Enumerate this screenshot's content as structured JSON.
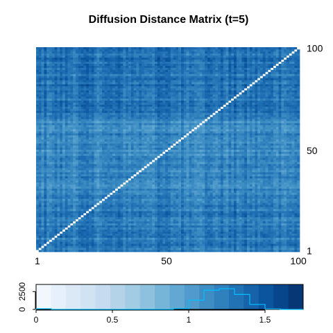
{
  "chart_data": [
    {
      "type": "heatmap",
      "title": "Diffusion Distance Matrix (t=5)",
      "n": 100,
      "x_ticks": [
        "1",
        "50",
        "100"
      ],
      "y_ticks": [
        "1",
        "50",
        "100"
      ],
      "x_tick_values": [
        1,
        50,
        100
      ],
      "y_tick_values": [
        1,
        50,
        100
      ],
      "diagonal_value": 0,
      "typical_offdiagonal_range": [
        0.95,
        1.55
      ],
      "colorscale": [
        "#F7FBFF",
        "#DEEBF7",
        "#C6DBEF",
        "#9ECAE1",
        "#6BAED6",
        "#4292C6",
        "#2171B5",
        "#08519C",
        "#08306B"
      ],
      "value_range": [
        0,
        1.75
      ]
    },
    {
      "type": "bar",
      "role": "color-key histogram",
      "x_ticks": [
        "0",
        "0.5",
        "1",
        "1.5"
      ],
      "x_tick_values": [
        0,
        0.5,
        1,
        1.5
      ],
      "y_ticks": [
        "0",
        "2500"
      ],
      "y_tick_values": [
        0,
        2500
      ],
      "xlim": [
        0,
        1.75
      ],
      "ylim": [
        0,
        3500
      ],
      "bin_edges": [
        0,
        0.1,
        0.2,
        0.3,
        0.4,
        0.5,
        0.6,
        0.7,
        0.8,
        0.9,
        1.0,
        1.1,
        1.2,
        1.3,
        1.4,
        1.5,
        1.6,
        1.7,
        1.75
      ],
      "counts": [
        100,
        0,
        0,
        0,
        0,
        0,
        0,
        0,
        0,
        120,
        1300,
        2700,
        2900,
        2100,
        700,
        80,
        0,
        0
      ],
      "line_color": "#00BFFF"
    }
  ]
}
